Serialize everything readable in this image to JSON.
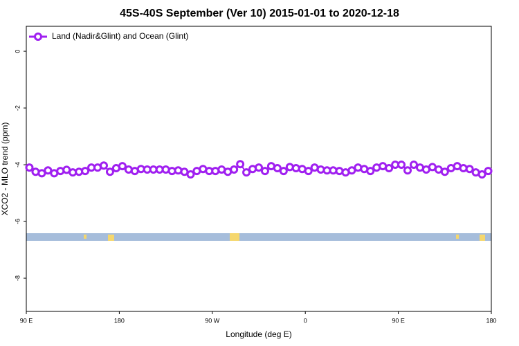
{
  "chart_data": {
    "type": "line",
    "title": "45S-40S September (Ver 10)   2015-01-01 to 2020-12-18",
    "xlabel": "Longitude (deg E)",
    "ylabel": "XCO2 - MLO trend (ppm)",
    "x": [
      93,
      99,
      105,
      111,
      117,
      123,
      129,
      135,
      141,
      147,
      153,
      159,
      165,
      171,
      177,
      183,
      189,
      195,
      201,
      207,
      213,
      219,
      225,
      231,
      237,
      243,
      249,
      255,
      261,
      267,
      273,
      279,
      285,
      291,
      297,
      303,
      309,
      315,
      321,
      327,
      333,
      339,
      345,
      351,
      357,
      363,
      369,
      375,
      381,
      387,
      393,
      399,
      405,
      411,
      417,
      423,
      429,
      435,
      441,
      447,
      453,
      459,
      465,
      471,
      477,
      483,
      489,
      495,
      501,
      507,
      513,
      519,
      525,
      531,
      537
    ],
    "series": [
      {
        "name": "Land (Nadir&Glint) and Ocean (Glint)",
        "color": "#a020f0",
        "values": [
          -4.1,
          -4.25,
          -4.3,
          -4.2,
          -4.3,
          -4.22,
          -4.18,
          -4.27,
          -4.25,
          -4.22,
          -4.1,
          -4.1,
          -4.03,
          -4.25,
          -4.12,
          -4.05,
          -4.17,
          -4.22,
          -4.15,
          -4.17,
          -4.17,
          -4.17,
          -4.17,
          -4.22,
          -4.2,
          -4.25,
          -4.34,
          -4.22,
          -4.15,
          -4.22,
          -4.22,
          -4.17,
          -4.25,
          -4.17,
          -3.98,
          -4.27,
          -4.15,
          -4.1,
          -4.22,
          -4.05,
          -4.12,
          -4.22,
          -4.08,
          -4.12,
          -4.15,
          -4.22,
          -4.1,
          -4.17,
          -4.2,
          -4.2,
          -4.22,
          -4.27,
          -4.2,
          -4.1,
          -4.15,
          -4.22,
          -4.1,
          -4.05,
          -4.12,
          -4,
          -4,
          -4.2,
          -4,
          -4.1,
          -4.17,
          -4.08,
          -4.17,
          -4.25,
          -4.12,
          -4.05,
          -4.12,
          -4.15,
          -4.27,
          -4.34,
          -4.22
        ]
      }
    ],
    "xlim": [
      90,
      540
    ],
    "xticks": [
      {
        "value": 90,
        "label": "90 E"
      },
      180,
      {
        "value": 270,
        "label": "90 W"
      },
      {
        "value": 360,
        "label": "0"
      },
      {
        "value": 450,
        "label": "90 E"
      },
      {
        "value": 540,
        "label": "180"
      }
    ],
    "ylim": [
      -9.17,
      0.88
    ],
    "yticks": [
      0,
      -2,
      -4,
      -6,
      -8
    ],
    "legend": "top-left"
  }
}
